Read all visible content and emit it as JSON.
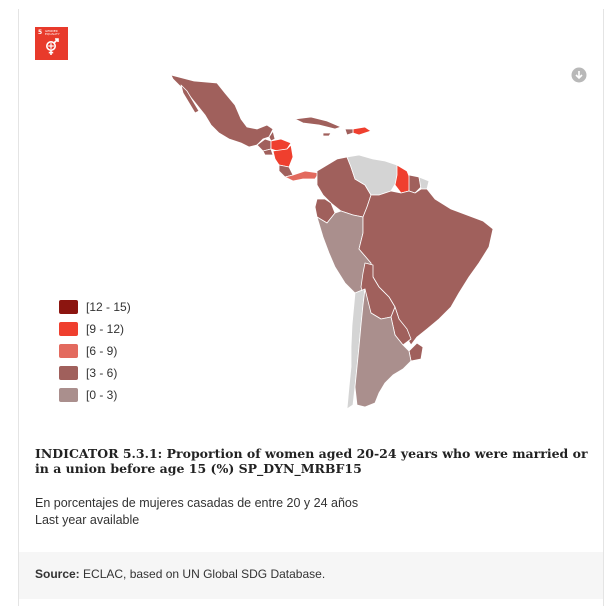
{
  "badge": {
    "number": "5",
    "text": "GENDER EQUALITY"
  },
  "download": {
    "icon": "download-circle-icon"
  },
  "legend": {
    "items": [
      {
        "label": "[12 - 15)",
        "color": "#8c1510"
      },
      {
        "label": "[9 - 12)",
        "color": "#ef3f2e"
      },
      {
        "label": "[6 - 9)",
        "color": "#e36a5e"
      },
      {
        "label": "[3 - 6)",
        "color": "#a0605c"
      },
      {
        "label": "[0 - 3)",
        "color": "#aa8f8d"
      }
    ]
  },
  "title": "INDICATOR 5.3.1: Proportion of women aged 20-24 years who were married or in a union before age 15 (%) SP_DYN_MRBF15",
  "subtitle_line1": "En porcentajes de mujeres casadas de entre 20 y 24 años",
  "subtitle_line2": "Last year available",
  "source": {
    "label": "Source:",
    "text": "ECLAC, based on UN Global SDG Database."
  },
  "colors": {
    "no_data": "#d4d4d4",
    "border": "#ffffff"
  }
}
